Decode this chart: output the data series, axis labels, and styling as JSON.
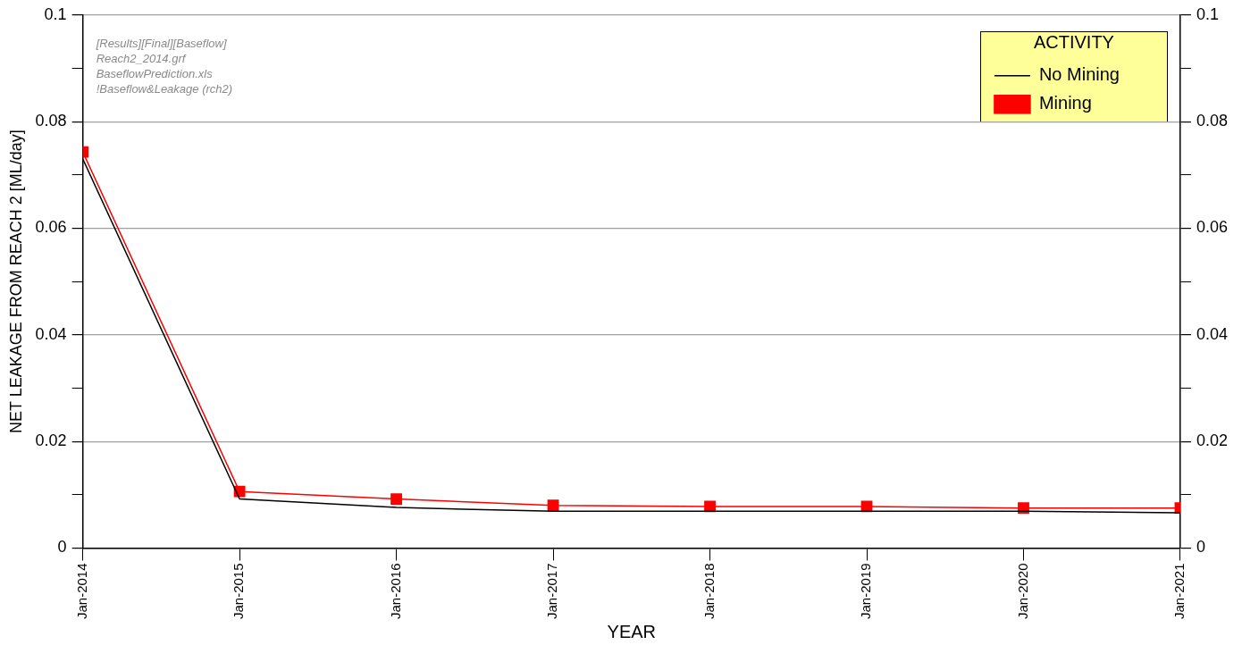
{
  "chart_data": {
    "type": "line",
    "xlabel": "YEAR",
    "ylabel": "NET LEAKAGE FROM REACH 2 [ML/day]",
    "legend_title": "ACTIVITY",
    "legend": "top right",
    "grid": "y",
    "line_style": "solid",
    "x": [
      "2014-01",
      "2015-01",
      "2016-01",
      "2017-01",
      "2018-01",
      "2019-01",
      "2020-01",
      "2021-01"
    ],
    "series": [
      {
        "name": "Mining",
        "color": "#ff0000",
        "marker": "square",
        "values": [
          0.0743,
          0.0106,
          0.0092,
          0.008,
          0.0078,
          0.0078,
          0.0075,
          0.0075
        ]
      },
      {
        "name": "No Mining",
        "color": "#000000",
        "marker": "none",
        "values": [
          0.073,
          0.0092,
          0.0076,
          0.0069,
          0.0069,
          0.0069,
          0.0069,
          0.0066
        ]
      }
    ],
    "xlim": [
      "2014-01",
      "2021-01"
    ],
    "xticks": [
      {
        "value": "2014-01",
        "label": "Jan-2014"
      },
      {
        "value": "2015-01",
        "label": "Jan-2015"
      },
      {
        "value": "2016-01",
        "label": "Jan-2016"
      },
      {
        "value": "2017-01",
        "label": "Jan-2017"
      },
      {
        "value": "2018-01",
        "label": "Jan-2018"
      },
      {
        "value": "2019-01",
        "label": "Jan-2019"
      },
      {
        "value": "2020-01",
        "label": "Jan-2020"
      },
      {
        "value": "2021-01",
        "label": "Jan-2021"
      }
    ],
    "ylim": [
      0,
      0.1
    ],
    "yticks": [
      0,
      {
        "value": 0.01,
        "label": null
      },
      0.02,
      {
        "value": 0.03,
        "label": null
      },
      0.04,
      {
        "value": 0.05,
        "label": null
      },
      0.06,
      {
        "value": 0.07,
        "label": null
      },
      0.08,
      {
        "value": 0.09,
        "label": null
      },
      0.1
    ],
    "y2lim": [
      0,
      0.1
    ],
    "y2ticks": [
      0,
      {
        "value": 0.01,
        "label": null
      },
      0.02,
      {
        "value": 0.03,
        "label": null
      },
      0.04,
      {
        "value": 0.05,
        "label": null
      },
      0.06,
      {
        "value": 0.07,
        "label": null
      },
      0.08,
      {
        "value": 0.09,
        "label": null
      },
      0.1
    ],
    "annotations": [
      "[Results][Final][Baseflow]",
      "Reach2_2014.grf",
      "BaseflowPrediction.xls",
      "!Baseflow&Leakage (rch2)"
    ]
  }
}
